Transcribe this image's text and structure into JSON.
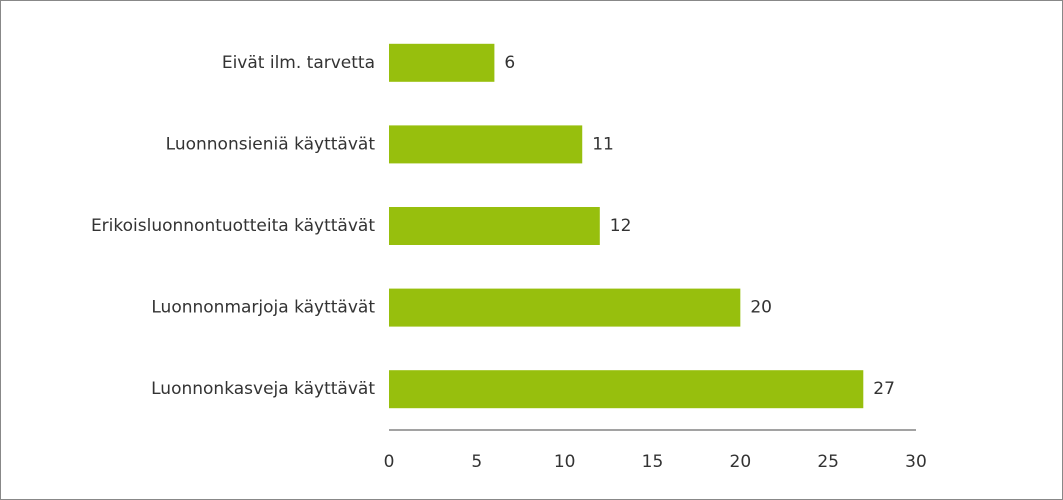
{
  "chart_data": {
    "type": "bar",
    "orientation": "horizontal",
    "categories": [
      "Eivät ilm. tarvetta",
      "Luonnonsieniä käyttävät",
      "Erikoisluonnontuotteita käyttävät",
      "Luonnonmarjoja käyttävät",
      "Luonnonkasveja käyttävät"
    ],
    "values": [
      6,
      11,
      12,
      20,
      27
    ],
    "color": "#97bf0d",
    "xlim": [
      0,
      30
    ],
    "xticks": [
      0,
      5,
      10,
      15,
      20,
      25,
      30
    ],
    "grid": false
  }
}
